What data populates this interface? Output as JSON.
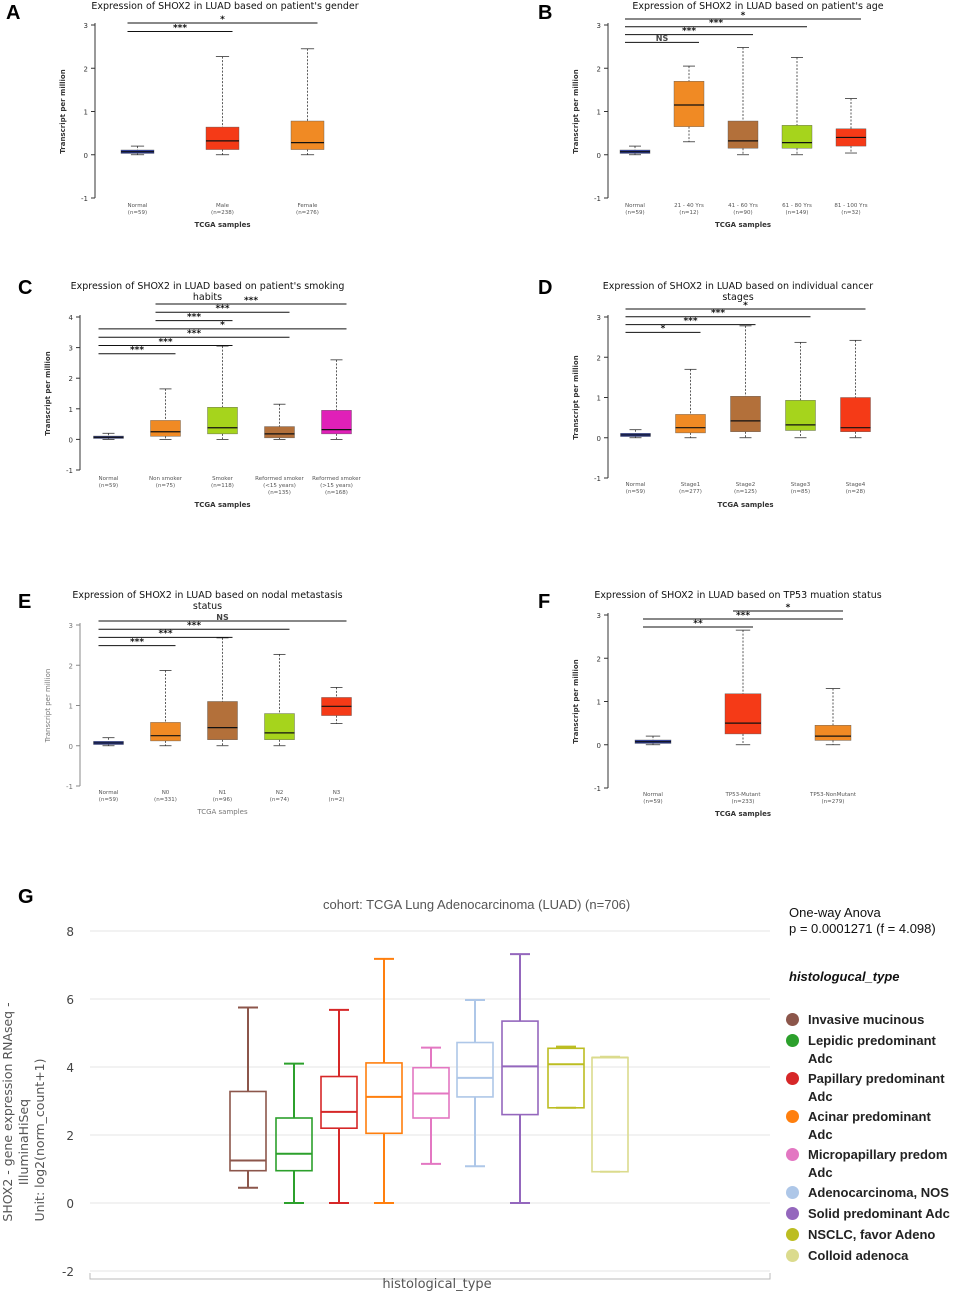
{
  "panels": [
    {
      "id": "A",
      "title": "Expression of SHOX2 in LUAD based on patient's gender",
      "ylabel": "Transcript per million",
      "xlabel": "TCGA samples",
      "ylim": [
        -1,
        3
      ],
      "yticks": [
        -1,
        0,
        1,
        2,
        3
      ],
      "groups": [
        {
          "name": "Normal",
          "n": "(n=59)",
          "color": "#2d3fa6",
          "min": 0.0,
          "q1": 0.03,
          "med": 0.07,
          "q3": 0.11,
          "max": 0.2
        },
        {
          "name": "Male",
          "n": "(n=238)",
          "color": "#f53a17",
          "min": 0.0,
          "q1": 0.12,
          "med": 0.32,
          "q3": 0.64,
          "max": 2.27
        },
        {
          "name": "Female",
          "n": "(n=276)",
          "color": "#f08a24",
          "min": 0.0,
          "q1": 0.12,
          "med": 0.28,
          "q3": 0.78,
          "max": 2.45
        }
      ],
      "sig": [
        {
          "from": 0,
          "to": 2,
          "label": "*"
        },
        {
          "from": 0,
          "to": 1,
          "label": "***"
        }
      ]
    },
    {
      "id": "B",
      "title": "Expression of SHOX2 in LUAD based on patient's age",
      "ylabel": "Transcript per million",
      "xlabel": "TCGA samples",
      "ylim": [
        -1,
        3
      ],
      "yticks": [
        -1,
        0,
        1,
        2,
        3
      ],
      "groups": [
        {
          "name": "Normal",
          "n": "(n=59)",
          "color": "#2d3fa6",
          "min": 0.0,
          "q1": 0.03,
          "med": 0.07,
          "q3": 0.11,
          "max": 0.2
        },
        {
          "name": "21 - 40 Yrs",
          "n": "(n=12)",
          "color": "#f08a24",
          "min": 0.3,
          "q1": 0.65,
          "med": 1.15,
          "q3": 1.7,
          "max": 2.05
        },
        {
          "name": "41 - 60 Yrs",
          "n": "(n=90)",
          "color": "#b3703a",
          "min": 0.0,
          "q1": 0.15,
          "med": 0.32,
          "q3": 0.78,
          "max": 2.48
        },
        {
          "name": "61 - 80 Yrs",
          "n": "(n=149)",
          "color": "#a6d41c",
          "min": 0.0,
          "q1": 0.15,
          "med": 0.28,
          "q3": 0.68,
          "max": 2.25
        },
        {
          "name": "81 - 100 Yrs",
          "n": "(n=32)",
          "color": "#f53a17",
          "min": 0.04,
          "q1": 0.2,
          "med": 0.4,
          "q3": 0.6,
          "max": 1.3
        }
      ],
      "sig": [
        {
          "from": 0,
          "to": 4,
          "label": "*"
        },
        {
          "from": 0,
          "to": 3,
          "label": "***"
        },
        {
          "from": 0,
          "to": 2,
          "label": "***"
        },
        {
          "from": 0,
          "to": 1,
          "label": "NS"
        }
      ]
    },
    {
      "id": "C",
      "title": "Expression of SHOX2 in LUAD based on patient's smoking habits",
      "ylabel": "Transcript per million",
      "xlabel": "TCGA samples",
      "ylim": [
        -1,
        4
      ],
      "yticks": [
        -1,
        0,
        1,
        2,
        3,
        4
      ],
      "groups": [
        {
          "name": "Normal",
          "n": "(n=59)",
          "color": "#2d3fa6",
          "min": 0.0,
          "q1": 0.03,
          "med": 0.07,
          "q3": 0.11,
          "max": 0.2
        },
        {
          "name": "Non smoker",
          "n": "(n=75)",
          "color": "#f08a24",
          "min": 0.0,
          "q1": 0.1,
          "med": 0.25,
          "q3": 0.62,
          "max": 1.65
        },
        {
          "name": "Smoker",
          "n": "(n=118)",
          "color": "#a6d41c",
          "min": 0.0,
          "q1": 0.18,
          "med": 0.38,
          "q3": 1.05,
          "max": 3.05
        },
        {
          "name": "Reformed smoker",
          "sub": "(<15 years)",
          "n": "(n=135)",
          "color": "#b3703a",
          "min": 0.0,
          "q1": 0.05,
          "med": 0.18,
          "q3": 0.42,
          "max": 1.15
        },
        {
          "name": "Reformed smoker",
          "sub": "(>15 years)",
          "n": "(n=168)",
          "color": "#e020b8",
          "min": 0.0,
          "q1": 0.18,
          "med": 0.32,
          "q3": 0.95,
          "max": 2.6
        }
      ],
      "sig": [
        {
          "from": 1,
          "to": 4,
          "label": "***"
        },
        {
          "from": 1,
          "to": 3,
          "label": "***"
        },
        {
          "from": 1,
          "to": 2,
          "label": "***"
        },
        {
          "from": 0,
          "to": 4,
          "label": "*"
        },
        {
          "from": 0,
          "to": 3,
          "label": "***"
        },
        {
          "from": 0,
          "to": 2,
          "label": "***"
        },
        {
          "from": 0,
          "to": 1,
          "label": "***"
        }
      ]
    },
    {
      "id": "D",
      "title": "Expression of SHOX2 in LUAD based on individual cancer stages",
      "ylabel": "Transcript per million",
      "xlabel": "TCGA samples",
      "ylim": [
        -1,
        3
      ],
      "yticks": [
        -1,
        0,
        1,
        2,
        3
      ],
      "groups": [
        {
          "name": "Normal",
          "n": "(n=59)",
          "color": "#2d3fa6",
          "min": 0.0,
          "q1": 0.03,
          "med": 0.07,
          "q3": 0.11,
          "max": 0.2
        },
        {
          "name": "Stage1",
          "n": "(n=277)",
          "color": "#f08a24",
          "min": 0.0,
          "q1": 0.12,
          "med": 0.25,
          "q3": 0.58,
          "max": 1.7
        },
        {
          "name": "Stage2",
          "n": "(n=125)",
          "color": "#b3703a",
          "min": 0.0,
          "q1": 0.15,
          "med": 0.42,
          "q3": 1.03,
          "max": 2.78
        },
        {
          "name": "Stage3",
          "n": "(n=85)",
          "color": "#a6d41c",
          "min": 0.0,
          "q1": 0.18,
          "med": 0.32,
          "q3": 0.93,
          "max": 2.37
        },
        {
          "name": "Stage4",
          "n": "(n=28)",
          "color": "#f53a17",
          "min": 0.0,
          "q1": 0.15,
          "med": 0.25,
          "q3": 1.0,
          "max": 2.42
        }
      ],
      "sig": [
        {
          "from": 0,
          "to": 4,
          "label": "*"
        },
        {
          "from": 0,
          "to": 3,
          "label": "***"
        },
        {
          "from": 0,
          "to": 2,
          "label": "***"
        },
        {
          "from": 0,
          "to": 1,
          "label": "*"
        }
      ]
    },
    {
      "id": "E",
      "title": "Expression of SHOX2 in LUAD based on nodal metastasis status",
      "ylabel": "Transcript per million",
      "xlabel": "TCGA samples",
      "ylim": [
        -1,
        3
      ],
      "yticks": [
        -1,
        0,
        1,
        2,
        3
      ],
      "groups": [
        {
          "name": "Normal",
          "n": "(n=59)",
          "color": "#2d3fa6",
          "min": 0.0,
          "q1": 0.03,
          "med": 0.07,
          "q3": 0.11,
          "max": 0.2
        },
        {
          "name": "N0",
          "n": "(n=331)",
          "color": "#f08a24",
          "min": 0.0,
          "q1": 0.12,
          "med": 0.25,
          "q3": 0.58,
          "max": 1.87
        },
        {
          "name": "N1",
          "n": "(n=96)",
          "color": "#b3703a",
          "min": 0.0,
          "q1": 0.15,
          "med": 0.45,
          "q3": 1.1,
          "max": 2.68
        },
        {
          "name": "N2",
          "n": "(n=74)",
          "color": "#a6d41c",
          "min": 0.0,
          "q1": 0.15,
          "med": 0.32,
          "q3": 0.8,
          "max": 2.27
        },
        {
          "name": "N3",
          "n": "(n=2)",
          "color": "#f53a17",
          "min": 0.55,
          "q1": 0.75,
          "med": 0.98,
          "q3": 1.2,
          "max": 1.45
        }
      ],
      "sig": [
        {
          "from": 0,
          "to": 4,
          "label": "NS"
        },
        {
          "from": 0,
          "to": 3,
          "label": "***"
        },
        {
          "from": 0,
          "to": 2,
          "label": "***"
        },
        {
          "from": 0,
          "to": 1,
          "label": "***"
        }
      ]
    },
    {
      "id": "F",
      "title": "Expression of SHOX2 in LUAD based on TP53 muation status",
      "ylabel": "Transcript per million",
      "xlabel": "TCGA samples",
      "ylim": [
        -1,
        3
      ],
      "yticks": [
        -1,
        0,
        1,
        2,
        3
      ],
      "groups": [
        {
          "name": "Normal",
          "n": "(n=59)",
          "color": "#2d3fa6",
          "min": 0.0,
          "q1": 0.03,
          "med": 0.07,
          "q3": 0.11,
          "max": 0.2
        },
        {
          "name": "TP53-Mutant",
          "n": "(n=233)",
          "color": "#f53a17",
          "min": 0.0,
          "q1": 0.25,
          "med": 0.5,
          "q3": 1.18,
          "max": 2.65
        },
        {
          "name": "TP53-NonMutant",
          "n": "(n=279)",
          "color": "#f08a24",
          "min": 0.0,
          "q1": 0.1,
          "med": 0.2,
          "q3": 0.45,
          "max": 1.3
        }
      ],
      "sig": [
        {
          "from": 1,
          "to": 2,
          "label": "*"
        },
        {
          "from": 0,
          "to": 2,
          "label": "***"
        },
        {
          "from": 0,
          "to": 1,
          "label": "**"
        }
      ]
    }
  ],
  "panel_g": {
    "id": "G",
    "title": "cohort: TCGA Lung Adenocarcinoma (LUAD) (n=706)",
    "ylabel_lines": [
      "SHOX2 - gene expression RNAseq -",
      "IlluminaHiSeq",
      "Unit: log2(norm_count+1)"
    ],
    "xlabel": "histological_type",
    "ylim": [
      -2,
      8
    ],
    "yticks": [
      -2,
      0,
      2,
      4,
      6,
      8
    ],
    "stat_lines": [
      "One-way Anova",
      "p = 0.0001271 (f = 4.098)"
    ],
    "legend_title": "histologucal_type",
    "groups": [
      {
        "name": "Invasive mucinous",
        "color": "#8c564b",
        "min": 0.45,
        "q1": 0.95,
        "med": 1.25,
        "q3": 3.28,
        "max": 5.75
      },
      {
        "name": "Lepidic predominant Adc",
        "color": "#2ca02c",
        "min": 0.0,
        "q1": 0.95,
        "med": 1.45,
        "q3": 2.5,
        "max": 4.1
      },
      {
        "name": "Papillary predominant Adc",
        "color": "#d62728",
        "min": 0.0,
        "q1": 2.2,
        "med": 2.68,
        "q3": 3.72,
        "max": 5.68
      },
      {
        "name": "Acinar predominant Adc",
        "color": "#ff7f0e",
        "min": 0.0,
        "q1": 2.05,
        "med": 3.12,
        "q3": 4.12,
        "max": 7.18
      },
      {
        "name": "Micropapillary predom Adc",
        "color": "#e377c2",
        "min": 1.15,
        "q1": 2.5,
        "med": 3.22,
        "q3": 3.98,
        "max": 4.57
      },
      {
        "name": "Adenocarcinoma, NOS",
        "color": "#aec7e8",
        "min": 1.08,
        "q1": 3.12,
        "med": 3.68,
        "q3": 4.72,
        "max": 5.97
      },
      {
        "name": "Solid predominant Adc",
        "color": "#9467bd",
        "min": 0.0,
        "q1": 2.6,
        "med": 4.02,
        "q3": 5.35,
        "max": 7.32
      },
      {
        "name": "NSCLC, favor Adeno",
        "color": "#bcbd22",
        "min": 2.8,
        "q1": 2.8,
        "med": 4.08,
        "q3": 4.55,
        "max": 4.6
      },
      {
        "name": "Colloid adenoca",
        "color": "#dbdb8d",
        "min": 0.92,
        "q1": 0.92,
        "med": 4.28,
        "q3": 4.28,
        "max": 4.3
      }
    ]
  },
  "chart_data": [
    {
      "type": "box",
      "panel": "A",
      "title": "Expression of SHOX2 in LUAD based on patient's gender",
      "categories": [
        "Normal",
        "Male",
        "Female"
      ],
      "ylim": [
        -1,
        3
      ]
    },
    {
      "type": "box",
      "panel": "B",
      "title": "Expression of SHOX2 in LUAD based on patient's age",
      "categories": [
        "Normal",
        "21 - 40 Yrs",
        "41 - 60 Yrs",
        "61 - 80 Yrs",
        "81 - 100 Yrs"
      ],
      "ylim": [
        -1,
        3
      ]
    },
    {
      "type": "box",
      "panel": "C",
      "title": "Expression of SHOX2 in LUAD based on patient's smoking habits",
      "categories": [
        "Normal",
        "Non smoker",
        "Smoker",
        "Reformed smoker (<15 years)",
        "Reformed smoker (>15 years)"
      ],
      "ylim": [
        -1,
        4
      ]
    },
    {
      "type": "box",
      "panel": "D",
      "title": "Expression of SHOX2 in LUAD based on individual cancer stages",
      "categories": [
        "Normal",
        "Stage1",
        "Stage2",
        "Stage3",
        "Stage4"
      ],
      "ylim": [
        -1,
        3
      ]
    },
    {
      "type": "box",
      "panel": "E",
      "title": "Expression of SHOX2 in LUAD based on nodal metastasis status",
      "categories": [
        "Normal",
        "N0",
        "N1",
        "N2",
        "N3"
      ],
      "ylim": [
        -1,
        3
      ]
    },
    {
      "type": "box",
      "panel": "F",
      "title": "Expression of SHOX2 in LUAD based on TP53 muation status",
      "categories": [
        "Normal",
        "TP53-Mutant",
        "TP53-NonMutant"
      ],
      "ylim": [
        -1,
        3
      ]
    },
    {
      "type": "box",
      "panel": "G",
      "title": "cohort: TCGA Lung Adenocarcinoma (LUAD) (n=706)",
      "categories": [
        "Invasive mucinous",
        "Lepidic predominant Adc",
        "Papillary predominant Adc",
        "Acinar predominant Adc",
        "Micropapillary predom Adc",
        "Adenocarcinoma, NOS",
        "Solid predominant Adc",
        "NSCLC, favor Adeno",
        "Colloid adenoca"
      ],
      "ylim": [
        -2,
        8
      ]
    }
  ]
}
